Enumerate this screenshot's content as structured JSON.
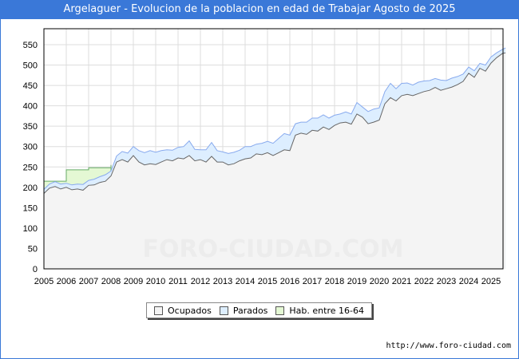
{
  "title": "Argelaguer - Evolucion de la poblacion en edad de Trabajar Agosto de 2025",
  "url": "http://www.foro-ciudad.com",
  "watermark": "FORO-CIUDAD.COM",
  "chart_data": {
    "type": "area",
    "title": "Argelaguer - Evolucion de la poblacion en edad de Trabajar Agosto de 2025",
    "xlabel": "",
    "ylabel": "",
    "xlim": [
      2005,
      2025.65
    ],
    "ylim": [
      0,
      550
    ],
    "grid": true,
    "legend_position": "bottom",
    "x_ticks": [
      "2005",
      "2006",
      "2007",
      "2008",
      "2009",
      "2010",
      "2011",
      "2012",
      "2013",
      "2014",
      "2015",
      "2016",
      "2017",
      "2018",
      "2019",
      "2020",
      "2021",
      "2022",
      "2023",
      "2024",
      "2025"
    ],
    "y_ticks": [
      "0",
      "50",
      "100",
      "150",
      "200",
      "250",
      "300",
      "350",
      "400",
      "450",
      "500",
      "550"
    ],
    "colors": {
      "ocupados": "#f4f4f4",
      "ocupados_line": "#666666",
      "parados": "#ddeeff",
      "parados_line": "#88aaee",
      "hab": "#e4f8d4",
      "hab_line": "#66aa66"
    },
    "series": [
      {
        "name": "Ocupados",
        "x": [
          2005,
          2005.25,
          2005.5,
          2005.75,
          2006,
          2006.25,
          2006.5,
          2006.75,
          2007,
          2007.25,
          2007.5,
          2007.75,
          2008,
          2008.25,
          2008.5,
          2008.75,
          2009,
          2009.25,
          2009.5,
          2009.75,
          2010,
          2010.25,
          2010.5,
          2010.75,
          2011,
          2011.25,
          2011.5,
          2011.75,
          2012,
          2012.25,
          2012.5,
          2012.75,
          2013,
          2013.25,
          2013.5,
          2013.75,
          2014,
          2014.25,
          2014.5,
          2014.75,
          2015,
          2015.25,
          2015.5,
          2015.75,
          2016,
          2016.25,
          2016.5,
          2016.75,
          2017,
          2017.25,
          2017.5,
          2017.75,
          2018,
          2018.25,
          2018.5,
          2018.75,
          2019,
          2019.25,
          2019.5,
          2019.75,
          2020,
          2020.25,
          2020.5,
          2020.75,
          2021,
          2021.25,
          2021.5,
          2021.75,
          2022,
          2022.25,
          2022.5,
          2022.75,
          2023,
          2023.25,
          2023.5,
          2023.75,
          2024,
          2024.25,
          2024.5,
          2024.75,
          2025,
          2025.25,
          2025.5,
          2025.65
        ],
        "values": [
          185,
          198,
          202,
          196,
          200,
          194,
          196,
          193,
          205,
          206,
          212,
          215,
          228,
          262,
          268,
          262,
          278,
          262,
          255,
          258,
          256,
          262,
          268,
          265,
          272,
          270,
          278,
          265,
          268,
          262,
          276,
          262,
          262,
          255,
          258,
          265,
          270,
          272,
          282,
          280,
          285,
          278,
          285,
          292,
          290,
          328,
          333,
          330,
          340,
          338,
          348,
          342,
          352,
          358,
          360,
          355,
          380,
          372,
          356,
          360,
          365,
          405,
          420,
          412,
          425,
          428,
          425,
          430,
          435,
          438,
          445,
          438,
          442,
          446,
          452,
          460,
          480,
          470,
          492,
          485,
          505,
          518,
          528,
          530
        ]
      },
      {
        "name": "Parados",
        "x": [
          2005,
          2005.25,
          2005.5,
          2005.75,
          2006,
          2006.25,
          2006.5,
          2006.75,
          2007,
          2007.25,
          2007.5,
          2007.75,
          2008,
          2008.25,
          2008.5,
          2008.75,
          2009,
          2009.25,
          2009.5,
          2009.75,
          2010,
          2010.25,
          2010.5,
          2010.75,
          2011,
          2011.25,
          2011.5,
          2011.75,
          2012,
          2012.25,
          2012.5,
          2012.75,
          2013,
          2013.25,
          2013.5,
          2013.75,
          2014,
          2014.25,
          2014.5,
          2014.75,
          2015,
          2015.25,
          2015.5,
          2015.75,
          2016,
          2016.25,
          2016.5,
          2016.75,
          2017,
          2017.25,
          2017.5,
          2017.75,
          2018,
          2018.25,
          2018.5,
          2018.75,
          2019,
          2019.25,
          2019.5,
          2019.75,
          2020,
          2020.25,
          2020.5,
          2020.75,
          2021,
          2021.25,
          2021.5,
          2021.75,
          2022,
          2022.25,
          2022.5,
          2022.75,
          2023,
          2023.25,
          2023.5,
          2023.75,
          2024,
          2024.25,
          2024.5,
          2024.75,
          2025,
          2025.25,
          2025.5,
          2025.65
        ],
        "values": [
          10,
          10,
          12,
          12,
          10,
          12,
          12,
          14,
          12,
          14,
          14,
          16,
          12,
          15,
          20,
          22,
          22,
          28,
          30,
          32,
          30,
          28,
          24,
          26,
          26,
          30,
          36,
          28,
          24,
          30,
          34,
          28,
          25,
          28,
          28,
          26,
          30,
          28,
          24,
          28,
          28,
          30,
          35,
          40,
          38,
          28,
          27,
          30,
          30,
          32,
          30,
          28,
          25,
          22,
          25,
          25,
          28,
          25,
          30,
          32,
          30,
          30,
          35,
          30,
          30,
          28,
          26,
          28,
          26,
          24,
          22,
          25,
          20,
          22,
          20,
          18,
          15,
          16,
          12,
          15,
          15,
          12,
          10,
          12
        ]
      },
      {
        "name": "Hab. entre 16-64",
        "x": [
          2005,
          2006,
          2007,
          2008
        ],
        "values": [
          215,
          243,
          248,
          255
        ]
      }
    ]
  }
}
